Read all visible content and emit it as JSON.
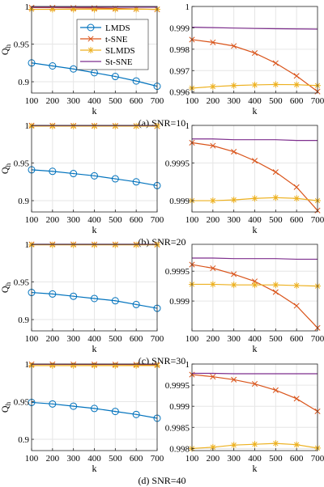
{
  "colors": {
    "LMDS": "#0072BD",
    "t-SNE": "#D95319",
    "SLMDS": "#EDB120",
    "St-SNE": "#7E2F8E",
    "grid": "#e6e6e6",
    "axis": "#262626"
  },
  "legend": {
    "placement": "top-right of first panel",
    "entries": [
      "LMDS",
      "t-SNE",
      "SLMDS",
      "St-SNE"
    ],
    "markers": [
      "circle",
      "cross",
      "star",
      "none"
    ]
  },
  "chart_data": [
    {
      "type": "line",
      "caption": "(a) SNR=10",
      "position": "left",
      "xlabel": "k",
      "ylabel": "Q",
      "ylabel_sub": "h",
      "x": [
        100,
        200,
        300,
        400,
        500,
        600,
        700
      ],
      "xlim": [
        100,
        700
      ],
      "ylim": [
        0.885,
        1.0
      ],
      "xticks": [
        "100",
        "200",
        "300",
        "400",
        "500",
        "600",
        "700"
      ],
      "yticks": [
        {
          "v": 0.9,
          "label": "0.9"
        },
        {
          "v": 0.95,
          "label": "0.95"
        },
        {
          "v": 1.0,
          "label": "1"
        }
      ],
      "grid": true,
      "series": [
        {
          "name": "LMDS",
          "values": [
            0.925,
            0.921,
            0.917,
            0.912,
            0.907,
            0.901,
            0.894
          ]
        },
        {
          "name": "t-SNE",
          "values": [
            0.9985,
            0.9983,
            0.9981,
            0.9978,
            0.9973,
            0.9967,
            0.996
          ]
        },
        {
          "name": "SLMDS",
          "values": [
            0.9962,
            0.9962,
            0.9963,
            0.9963,
            0.9964,
            0.9964,
            0.9963
          ]
        },
        {
          "name": "St-SNE",
          "values": [
            0.9991,
            0.9991,
            0.9991,
            0.9991,
            0.9991,
            0.9991,
            0.9991
          ]
        }
      ]
    },
    {
      "type": "line",
      "caption": "",
      "position": "right",
      "xlabel": "k",
      "ylabel": "",
      "x": [
        100,
        200,
        300,
        400,
        500,
        600,
        700
      ],
      "xlim": [
        100,
        700
      ],
      "ylim": [
        0.99595,
        1.0
      ],
      "xticks": [
        "100",
        "200",
        "300",
        "400",
        "500",
        "600",
        "700"
      ],
      "yticks": [
        {
          "v": 0.996,
          "label": "0.996"
        },
        {
          "v": 0.997,
          "label": "0.997"
        },
        {
          "v": 0.998,
          "label": "0.998"
        },
        {
          "v": 0.999,
          "label": "0.999"
        },
        {
          "v": 1.0,
          "label": "1"
        }
      ],
      "grid": true,
      "series": [
        {
          "name": "t-SNE",
          "values": [
            0.99845,
            0.99832,
            0.99815,
            0.99782,
            0.99735,
            0.99675,
            0.99602
          ]
        },
        {
          "name": "SLMDS",
          "values": [
            0.99618,
            0.99625,
            0.9963,
            0.99633,
            0.99635,
            0.99634,
            0.9963
          ]
        },
        {
          "name": "St-SNE",
          "values": [
            0.99903,
            0.99901,
            0.99899,
            0.99897,
            0.99896,
            0.99895,
            0.99894
          ]
        }
      ]
    },
    {
      "type": "line",
      "caption": "(b) SNR=20",
      "position": "left",
      "xlabel": "k",
      "ylabel": "Q",
      "ylabel_sub": "h",
      "x": [
        100,
        200,
        300,
        400,
        500,
        600,
        700
      ],
      "xlim": [
        100,
        700
      ],
      "ylim": [
        0.885,
        1.0
      ],
      "xticks": [
        "100",
        "200",
        "300",
        "400",
        "500",
        "600",
        "700"
      ],
      "yticks": [
        {
          "v": 0.9,
          "label": "0.9"
        },
        {
          "v": 0.95,
          "label": "0.95"
        },
        {
          "v": 1.0,
          "label": "1"
        }
      ],
      "grid": true,
      "series": [
        {
          "name": "LMDS",
          "values": [
            0.941,
            0.939,
            0.936,
            0.933,
            0.929,
            0.925,
            0.92
          ]
        },
        {
          "name": "t-SNE",
          "values": [
            0.9998,
            0.9997,
            0.9996,
            0.9995,
            0.9994,
            0.9992,
            0.9989
          ]
        },
        {
          "name": "SLMDS",
          "values": [
            0.999,
            0.999,
            0.999,
            0.999,
            0.999,
            0.999,
            0.999
          ]
        },
        {
          "name": "St-SNE",
          "values": [
            0.99985,
            0.99985,
            0.99985,
            0.99985,
            0.99985,
            0.99985,
            0.99985
          ]
        }
      ]
    },
    {
      "type": "line",
      "caption": "",
      "position": "right",
      "xlabel": "k",
      "ylabel": "",
      "x": [
        100,
        200,
        300,
        400,
        500,
        600,
        700
      ],
      "xlim": [
        100,
        700
      ],
      "ylim": [
        0.99885,
        1.0
      ],
      "xticks": [
        "100",
        "200",
        "300",
        "400",
        "500",
        "600",
        "700"
      ],
      "yticks": [
        {
          "v": 0.999,
          "label": "0.999"
        },
        {
          "v": 0.9995,
          "label": "0.9995"
        },
        {
          "v": 1.0,
          "label": "1"
        }
      ],
      "grid": true,
      "series": [
        {
          "name": "t-SNE",
          "values": [
            0.99977,
            0.99973,
            0.99965,
            0.99953,
            0.99938,
            0.99918,
            0.99887
          ]
        },
        {
          "name": "SLMDS",
          "values": [
            0.999,
            0.999,
            0.99901,
            0.99903,
            0.99904,
            0.99903,
            0.999
          ]
        },
        {
          "name": "St-SNE",
          "values": [
            0.99982,
            0.99982,
            0.99981,
            0.99981,
            0.99981,
            0.9998,
            0.9998
          ]
        }
      ]
    },
    {
      "type": "line",
      "caption": "(c) SNR=30",
      "position": "left",
      "xlabel": "k",
      "ylabel": "Q",
      "ylabel_sub": "h",
      "x": [
        100,
        200,
        300,
        400,
        500,
        600,
        700
      ],
      "xlim": [
        100,
        700
      ],
      "ylim": [
        0.885,
        1.0
      ],
      "xticks": [
        "100",
        "200",
        "300",
        "400",
        "500",
        "600",
        "700"
      ],
      "yticks": [
        {
          "v": 0.9,
          "label": "0.9"
        },
        {
          "v": 0.95,
          "label": "0.95"
        },
        {
          "v": 1.0,
          "label": "1"
        }
      ],
      "grid": true,
      "series": [
        {
          "name": "LMDS",
          "values": [
            0.936,
            0.934,
            0.931,
            0.928,
            0.925,
            0.92,
            0.915
          ]
        },
        {
          "name": "t-SNE",
          "values": [
            0.99995,
            0.99993,
            0.9999,
            0.99985,
            0.99978,
            0.99968,
            0.99955
          ]
        },
        {
          "name": "SLMDS",
          "values": [
            0.99925,
            0.99925,
            0.99925,
            0.99925,
            0.99925,
            0.99925,
            0.99925
          ]
        },
        {
          "name": "St-SNE",
          "values": [
            0.99997,
            0.99997,
            0.99997,
            0.99997,
            0.99997,
            0.99997,
            0.99997
          ]
        }
      ]
    },
    {
      "type": "line",
      "caption": "",
      "position": "right",
      "xlabel": "k",
      "ylabel": "",
      "x": [
        100,
        200,
        300,
        400,
        500,
        600,
        700
      ],
      "xlim": [
        100,
        700
      ],
      "ylim": [
        0.9985,
        0.99995
      ],
      "xticks": [
        "100",
        "200",
        "300",
        "400",
        "500",
        "600",
        "700"
      ],
      "yticks": [
        {
          "v": 0.999,
          "label": "0.999"
        },
        {
          "v": 0.9995,
          "label": "0.9995"
        }
      ],
      "grid": true,
      "series": [
        {
          "name": "t-SNE",
          "values": [
            0.99961,
            0.99955,
            0.99945,
            0.99933,
            0.99915,
            0.99892,
            0.99855
          ]
        },
        {
          "name": "SLMDS",
          "values": [
            0.99928,
            0.99928,
            0.99927,
            0.99927,
            0.99927,
            0.99926,
            0.99925
          ]
        },
        {
          "name": "St-SNE",
          "values": [
            0.99972,
            0.99972,
            0.99971,
            0.99971,
            0.99971,
            0.9997,
            0.9997
          ]
        }
      ]
    },
    {
      "type": "line",
      "caption": "(d) SNR=40",
      "position": "left",
      "xlabel": "k",
      "ylabel": "Q",
      "ylabel_sub": "h",
      "x": [
        100,
        200,
        300,
        400,
        500,
        600,
        700
      ],
      "xlim": [
        100,
        700
      ],
      "ylim": [
        0.885,
        1.0
      ],
      "xticks": [
        "100",
        "200",
        "300",
        "400",
        "500",
        "600",
        "700"
      ],
      "yticks": [
        {
          "v": 0.9,
          "label": "0.9"
        },
        {
          "v": 0.95,
          "label": "0.95"
        },
        {
          "v": 1.0,
          "label": "1"
        }
      ],
      "grid": true,
      "series": [
        {
          "name": "LMDS",
          "values": [
            0.949,
            0.947,
            0.944,
            0.941,
            0.937,
            0.933,
            0.928
          ]
        },
        {
          "name": "t-SNE",
          "values": [
            0.9997,
            0.9997,
            0.9996,
            0.9995,
            0.9994,
            0.9992,
            0.9988
          ]
        },
        {
          "name": "SLMDS",
          "values": [
            0.998,
            0.998,
            0.998,
            0.998,
            0.998,
            0.998,
            0.998
          ]
        },
        {
          "name": "St-SNE",
          "values": [
            0.9998,
            0.9998,
            0.9998,
            0.9998,
            0.9998,
            0.9998,
            0.9998
          ]
        }
      ]
    },
    {
      "type": "line",
      "caption": "",
      "position": "right",
      "xlabel": "k",
      "ylabel": "",
      "x": [
        100,
        200,
        300,
        400,
        500,
        600,
        700
      ],
      "xlim": [
        100,
        700
      ],
      "ylim": [
        0.99795,
        1.0
      ],
      "xticks": [
        "100",
        "200",
        "300",
        "400",
        "500",
        "600",
        "700"
      ],
      "yticks": [
        {
          "v": 0.998,
          "label": "0.998"
        },
        {
          "v": 0.9985,
          "label": "0.9985"
        },
        {
          "v": 0.999,
          "label": "0.999"
        },
        {
          "v": 0.9995,
          "label": "0.9995"
        },
        {
          "v": 1.0,
          "label": "1"
        }
      ],
      "grid": true,
      "series": [
        {
          "name": "t-SNE",
          "values": [
            0.99975,
            0.9997,
            0.99963,
            0.99953,
            0.99938,
            0.99918,
            0.99888
          ]
        },
        {
          "name": "SLMDS",
          "values": [
            0.998,
            0.99803,
            0.99808,
            0.9981,
            0.99812,
            0.99809,
            0.99801
          ]
        },
        {
          "name": "St-SNE",
          "values": [
            0.99978,
            0.99978,
            0.99977,
            0.99977,
            0.99977,
            0.99977,
            0.99977
          ]
        }
      ]
    }
  ]
}
